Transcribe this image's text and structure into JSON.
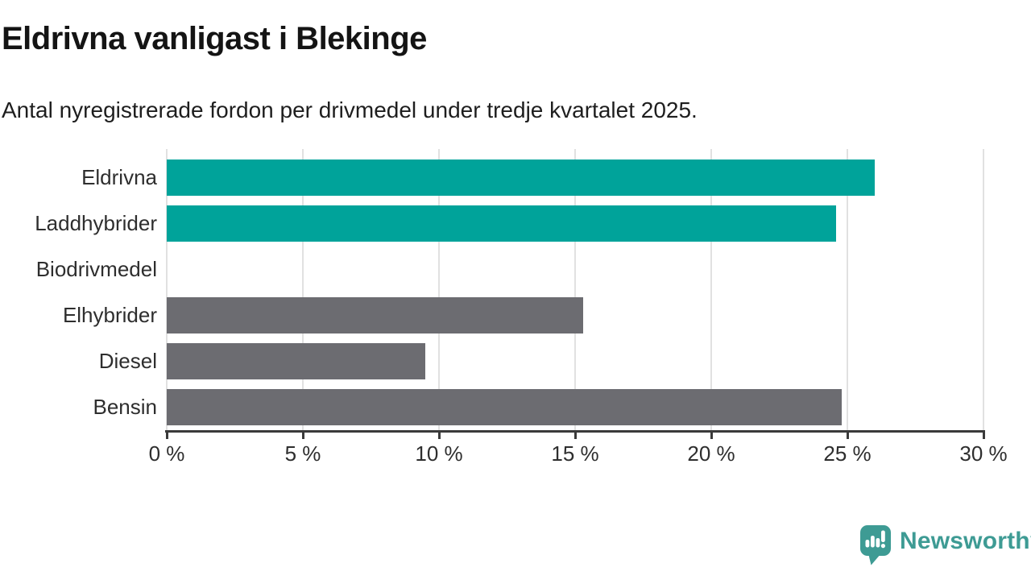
{
  "title": "Eldrivna vanligast i Blekinge",
  "subtitle": "Antal nyregistrerade fordon per drivmedel under tredje kvartalet 2025.",
  "branding": {
    "wordmark": "Newsworthy",
    "icon": "newsworthy-bubble-bar-chart-icon",
    "color": "#3e9b94"
  },
  "colors": {
    "highlight_teal": "#00a39a",
    "neutral_gray": "#6c6c71",
    "gridline": "#e1e1e1",
    "axis": "#3a3a3a",
    "text": "#2e2e2e"
  },
  "chart_data": {
    "type": "bar",
    "orientation": "horizontal",
    "title": "Eldrivna vanligast i Blekinge",
    "subtitle": "Antal nyregistrerade fordon per drivmedel under tredje kvartalet 2025.",
    "categories": [
      "Eldrivna",
      "Laddhybrider",
      "Biodrivmedel",
      "Elhybrider",
      "Diesel",
      "Bensin"
    ],
    "values": [
      26.0,
      24.6,
      0,
      15.3,
      9.5,
      24.8
    ],
    "bar_colors": [
      "#00a39a",
      "#00a39a",
      "#6c6c71",
      "#6c6c71",
      "#6c6c71",
      "#6c6c71"
    ],
    "unit": "%",
    "xlabel": "",
    "ylabel": "",
    "xlim": [
      0,
      30
    ],
    "xticks": [
      0,
      5,
      10,
      15,
      20,
      25,
      30
    ],
    "xtick_labels": [
      "0 %",
      "5 %",
      "10 %",
      "15 %",
      "20 %",
      "25 %",
      "30 %"
    ],
    "grid": "vertical",
    "legend": "none"
  }
}
